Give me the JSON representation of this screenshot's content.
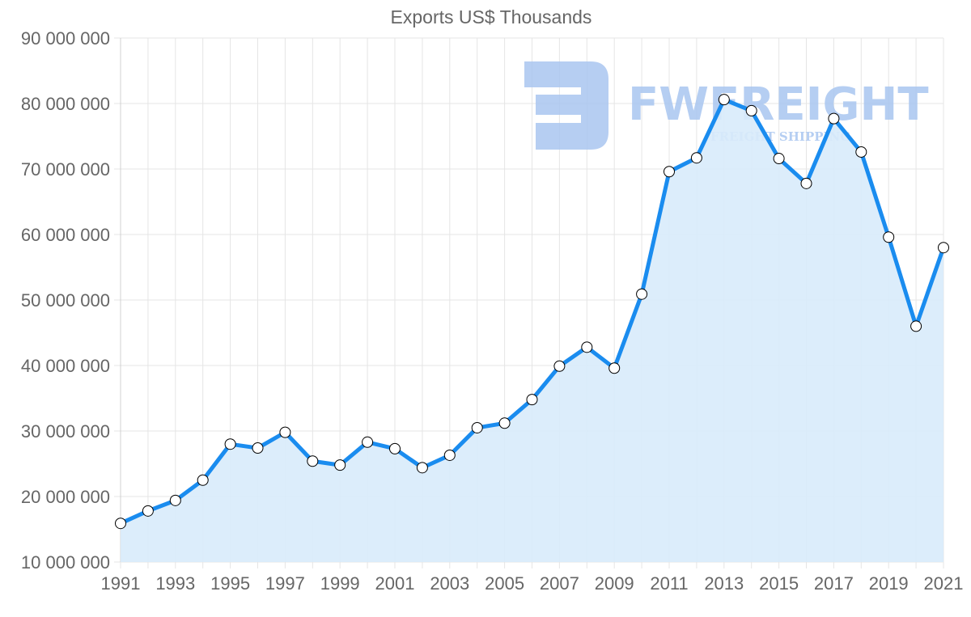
{
  "chart_data": {
    "type": "area",
    "title": "Exports US$ Thousands",
    "xlabel": "",
    "ylabel": "",
    "x": [
      1991,
      1992,
      1993,
      1994,
      1995,
      1996,
      1997,
      1998,
      1999,
      2000,
      2001,
      2002,
      2003,
      2004,
      2005,
      2006,
      2007,
      2008,
      2009,
      2010,
      2011,
      2012,
      2013,
      2014,
      2015,
      2016,
      2017,
      2018,
      2019,
      2020,
      2021
    ],
    "series": [
      {
        "name": "Exports US$ Thousands",
        "values": [
          15900000,
          17800000,
          19400000,
          22500000,
          28000000,
          27400000,
          29800000,
          25400000,
          24800000,
          28300000,
          27300000,
          24400000,
          26300000,
          30500000,
          31200000,
          34800000,
          39900000,
          42800000,
          39600000,
          50900000,
          69600000,
          71700000,
          80600000,
          78900000,
          71600000,
          67800000,
          77700000,
          72600000,
          59600000,
          46000000,
          58000000
        ]
      }
    ],
    "ylim": [
      10000000,
      90000000
    ],
    "yticks": [
      10000000,
      20000000,
      30000000,
      40000000,
      50000000,
      60000000,
      70000000,
      80000000,
      90000000
    ],
    "ytick_labels": [
      "10 000 000",
      "20 000 000",
      "30 000 000",
      "40 000 000",
      "50 000 000",
      "60 000 000",
      "70 000 000",
      "80 000 000",
      "90 000 000"
    ],
    "xtick_labels": [
      "1991",
      "1993",
      "1995",
      "1997",
      "1999",
      "2001",
      "2003",
      "2005",
      "2007",
      "2009",
      "2011",
      "2013",
      "2015",
      "2017",
      "2019",
      "2021"
    ],
    "grid": true,
    "legend": "none",
    "colors": {
      "line": "#1a8cef",
      "fill": "#d8ebfb",
      "marker_fill": "#ffffff",
      "marker_stroke": "#000000",
      "grid": "#e5e5e5",
      "text": "#666666"
    }
  },
  "watermark": {
    "brand": "FWFREIGHT",
    "tagline": "FREIGHT SHIPPING",
    "color": "#a9c6f0"
  }
}
